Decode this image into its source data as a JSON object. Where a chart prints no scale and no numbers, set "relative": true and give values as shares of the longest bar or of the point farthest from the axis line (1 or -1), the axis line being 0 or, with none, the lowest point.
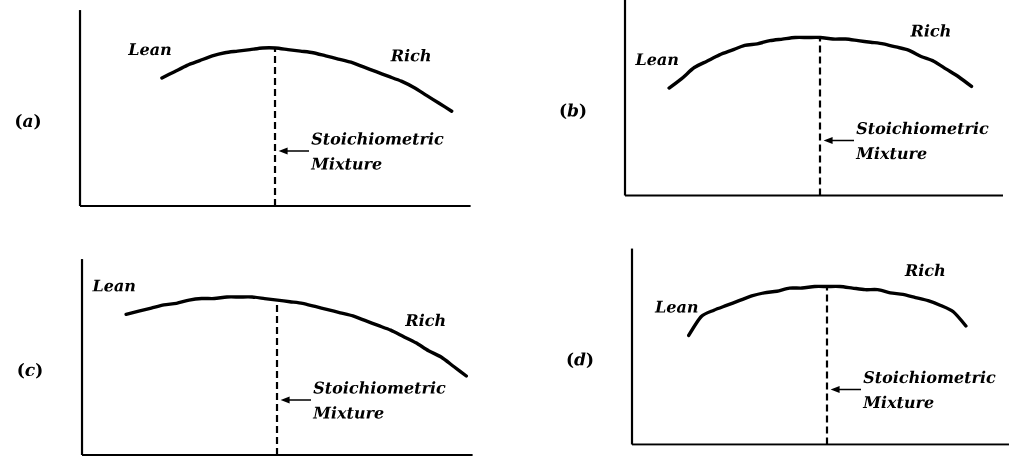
{
  "chart_data": [
    {
      "type": "line",
      "title": "(*a*)",
      "relative": true,
      "color": "#000000",
      "marker": "none",
      "line_style": "solid",
      "categories": [
        null,
        null,
        null,
        null,
        null,
        null,
        null,
        null,
        null,
        null,
        null,
        null,
        null,
        null,
        null,
        null,
        null,
        null,
        null,
        null,
        null,
        null,
        null,
        null,
        null,
        null,
        null,
        null,
        null,
        null,
        null
      ],
      "values": [
        null,
        null,
        null,
        null,
        null,
        null,
        0.81,
        0.85,
        0.89,
        0.92,
        0.95,
        0.97,
        0.98,
        0.99,
        1.0,
        1.0,
        0.99,
        0.98,
        0.97,
        0.95,
        0.93,
        0.91,
        0.88,
        0.85,
        0.82,
        0.79,
        0.75,
        0.7,
        0.65,
        0.6,
        null
      ],
      "annotations": [
        "Lean",
        "Rich",
        "Stoichiometric Mixture"
      ]
    },
    {
      "type": "line",
      "title": "(*b*)",
      "relative": true,
      "color": "#000000",
      "marker": "none",
      "line_style": "solid",
      "categories": [
        null,
        null,
        null,
        null,
        null,
        null,
        null,
        null,
        null,
        null,
        null,
        null,
        null,
        null,
        null,
        null,
        null,
        null,
        null,
        null,
        null,
        null,
        null,
        null,
        null,
        null,
        null,
        null,
        null,
        null
      ],
      "values": [
        null,
        null,
        null,
        0.68,
        0.74,
        0.81,
        0.85,
        0.89,
        0.92,
        0.95,
        0.96,
        0.98,
        0.99,
        1.0,
        1.0,
        1.0,
        0.99,
        0.99,
        0.98,
        0.97,
        0.96,
        0.94,
        0.92,
        0.88,
        0.85,
        0.8,
        0.75,
        0.69,
        null,
        null
      ],
      "annotations": [
        "Lean",
        "Rich",
        "Stoichiometric Mixture"
      ]
    },
    {
      "type": "line",
      "title": "(*c*)",
      "relative": true,
      "color": "#000000",
      "marker": "none",
      "line_style": "solid",
      "categories": [
        null,
        null,
        null,
        null,
        null,
        null,
        null,
        null,
        null,
        null,
        null,
        null,
        null,
        null,
        null,
        null,
        null,
        null,
        null,
        null,
        null,
        null,
        null,
        null,
        null,
        null,
        null,
        null,
        null,
        null,
        null
      ],
      "values": [
        null,
        null,
        null,
        0.89,
        0.91,
        0.93,
        0.95,
        0.96,
        0.98,
        0.99,
        0.99,
        1.0,
        1.0,
        1.0,
        0.99,
        0.98,
        0.97,
        0.96,
        0.94,
        0.92,
        0.9,
        0.88,
        0.85,
        0.82,
        0.79,
        0.75,
        0.71,
        0.66,
        0.62,
        0.56,
        0.5
      ],
      "annotations": [
        "Lean",
        "Rich",
        "Stoichiometric Mixture"
      ]
    },
    {
      "type": "line",
      "title": "(*d*)",
      "relative": true,
      "color": "#000000",
      "marker": "none",
      "line_style": "solid",
      "categories": [
        null,
        null,
        null,
        null,
        null,
        null,
        null,
        null,
        null,
        null,
        null,
        null,
        null,
        null,
        null,
        null,
        null,
        null,
        null,
        null,
        null,
        null,
        null,
        null,
        null,
        null,
        null,
        null,
        null,
        null
      ],
      "values": [
        null,
        null,
        null,
        null,
        0.69,
        0.81,
        0.85,
        0.88,
        0.91,
        0.94,
        0.96,
        0.97,
        0.99,
        0.99,
        1.0,
        1.0,
        1.0,
        0.99,
        0.98,
        0.98,
        0.96,
        0.95,
        0.93,
        0.91,
        0.88,
        0.84,
        0.75,
        null,
        null,
        null
      ],
      "annotations": [
        "Lean",
        "Rich",
        "Stoichiometric Mixture"
      ]
    }
  ]
}
